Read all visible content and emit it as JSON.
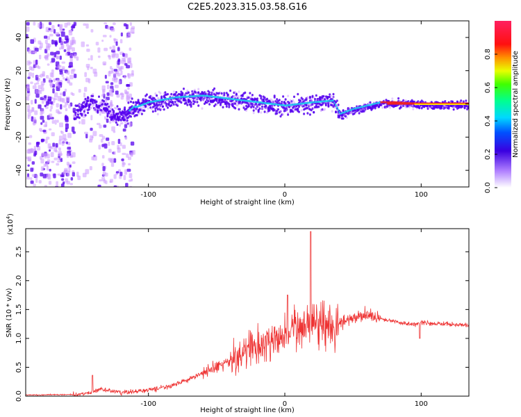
{
  "figure_title": "C2E5.2023.315.03.58.G16",
  "colors": {
    "line": "#ee3333",
    "spectrum_dark": "#5500ee",
    "spectrum_light": "#cc99ff",
    "ridge": "#22ccee",
    "ridge_hot": "#ee2222",
    "axis": "#000000"
  },
  "chart_data": [
    {
      "type": "heatmap",
      "title": "",
      "xlabel": "Height of straight line (km)",
      "ylabel": "Frequency (Hz)",
      "xlim": [
        -190,
        135
      ],
      "ylim": [
        -50,
        50
      ],
      "xticks": [
        -100,
        0,
        100
      ],
      "xtick_labels": [
        "-100",
        "0",
        "100"
      ],
      "yticks": [
        -40,
        -20,
        0,
        20,
        40
      ],
      "ytick_labels": [
        "-40",
        "-20",
        "0",
        "20",
        "40"
      ],
      "colorbar": {
        "label": "Normalized spectral amplitude",
        "range": [
          0,
          1
        ],
        "ticks": [
          0.0,
          0.2,
          0.4,
          0.6,
          0.8
        ],
        "tick_labels": [
          "0.0",
          "0.2",
          "0.4",
          "0.6",
          "0.8"
        ]
      },
      "ridge": {
        "x": [
          -110,
          -100,
          -80,
          -60,
          -40,
          -20,
          0,
          20,
          35,
          40,
          50,
          60,
          70,
          80,
          100,
          120,
          135
        ],
        "freq": [
          -2,
          1,
          4,
          5,
          3,
          1,
          -1,
          1,
          2,
          -6,
          -3,
          -1,
          1,
          1,
          0,
          0,
          0
        ]
      }
    },
    {
      "type": "line",
      "title": "",
      "xlabel": "Height of straight line (km)",
      "ylabel": "SNR (10 * v/v)",
      "y_multiplier": "(x10",
      "y_multiplier_exp": "4",
      "y_multiplier_close": ")",
      "xlim": [
        -190,
        135
      ],
      "ylim": [
        0,
        2.9
      ],
      "xticks": [
        -100,
        0,
        100
      ],
      "xtick_labels": [
        "-100",
        "0",
        "100"
      ],
      "yticks": [
        0.0,
        0.5,
        1.0,
        1.5,
        2.0,
        2.5
      ],
      "ytick_labels": [
        "0.0",
        "0.5",
        "1.0",
        "1.5",
        "2.0",
        "2.5"
      ],
      "series": [
        {
          "name": "SNR",
          "x": [
            -190,
            -150,
            -140,
            -135,
            -120,
            -100,
            -80,
            -60,
            -40,
            -30,
            -20,
            -10,
            0,
            10,
            18,
            20,
            25,
            30,
            40,
            50,
            60,
            70,
            80,
            90,
            98,
            100,
            110,
            120,
            130,
            135
          ],
          "y": [
            0.02,
            0.03,
            0.08,
            0.12,
            0.06,
            0.1,
            0.2,
            0.4,
            0.6,
            0.75,
            0.85,
            0.95,
            1.05,
            1.15,
            1.3,
            1.4,
            1.35,
            1.25,
            1.25,
            1.35,
            1.4,
            1.35,
            1.3,
            1.25,
            1.25,
            1.28,
            1.25,
            1.25,
            1.23,
            1.22
          ]
        }
      ]
    }
  ]
}
